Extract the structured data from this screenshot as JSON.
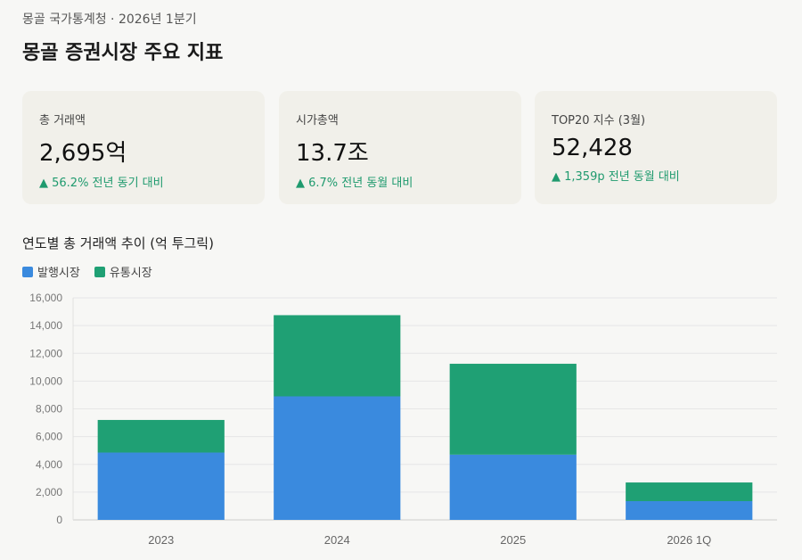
{
  "header": {
    "subtitle": "몽골 국가통계청 · 2026년 1분기",
    "title": "몽골 증권시장 주요 지표"
  },
  "cards": [
    {
      "label": "총 거래액",
      "value": "2,695억",
      "change": "▲ 56.2% 전년 동기 대비"
    },
    {
      "label": "시가총액",
      "value": "13.7조",
      "change": "▲ 6.7% 전년 동월 대비"
    },
    {
      "label": "TOP20 지수 (3월)",
      "value": "52,428",
      "change": "▲ 1,359p 전년 동월 대비"
    }
  ],
  "colors": {
    "positive": "#1f9a6e",
    "primary": "#3a8ade",
    "secondary": "#1fa074"
  },
  "chart_data": {
    "type": "bar",
    "stacked": true,
    "title": "연도별 총 거래액 추이 (억 투그릭)",
    "categories": [
      "2023",
      "2024",
      "2025",
      "2026 1Q"
    ],
    "series": [
      {
        "name": "발행시장",
        "color": "#3a8ade",
        "values": [
          4850,
          8900,
          4700,
          1350
        ]
      },
      {
        "name": "유통시장",
        "color": "#1fa074",
        "values": [
          2350,
          5850,
          6550,
          1345
        ]
      }
    ],
    "ylim": [
      0,
      16000
    ],
    "yticks": [
      "0",
      "2,000",
      "4,000",
      "6,000",
      "8,000",
      "10,000",
      "12,000",
      "14,000",
      "16,000"
    ],
    "grid": true,
    "legend": "top-left"
  }
}
